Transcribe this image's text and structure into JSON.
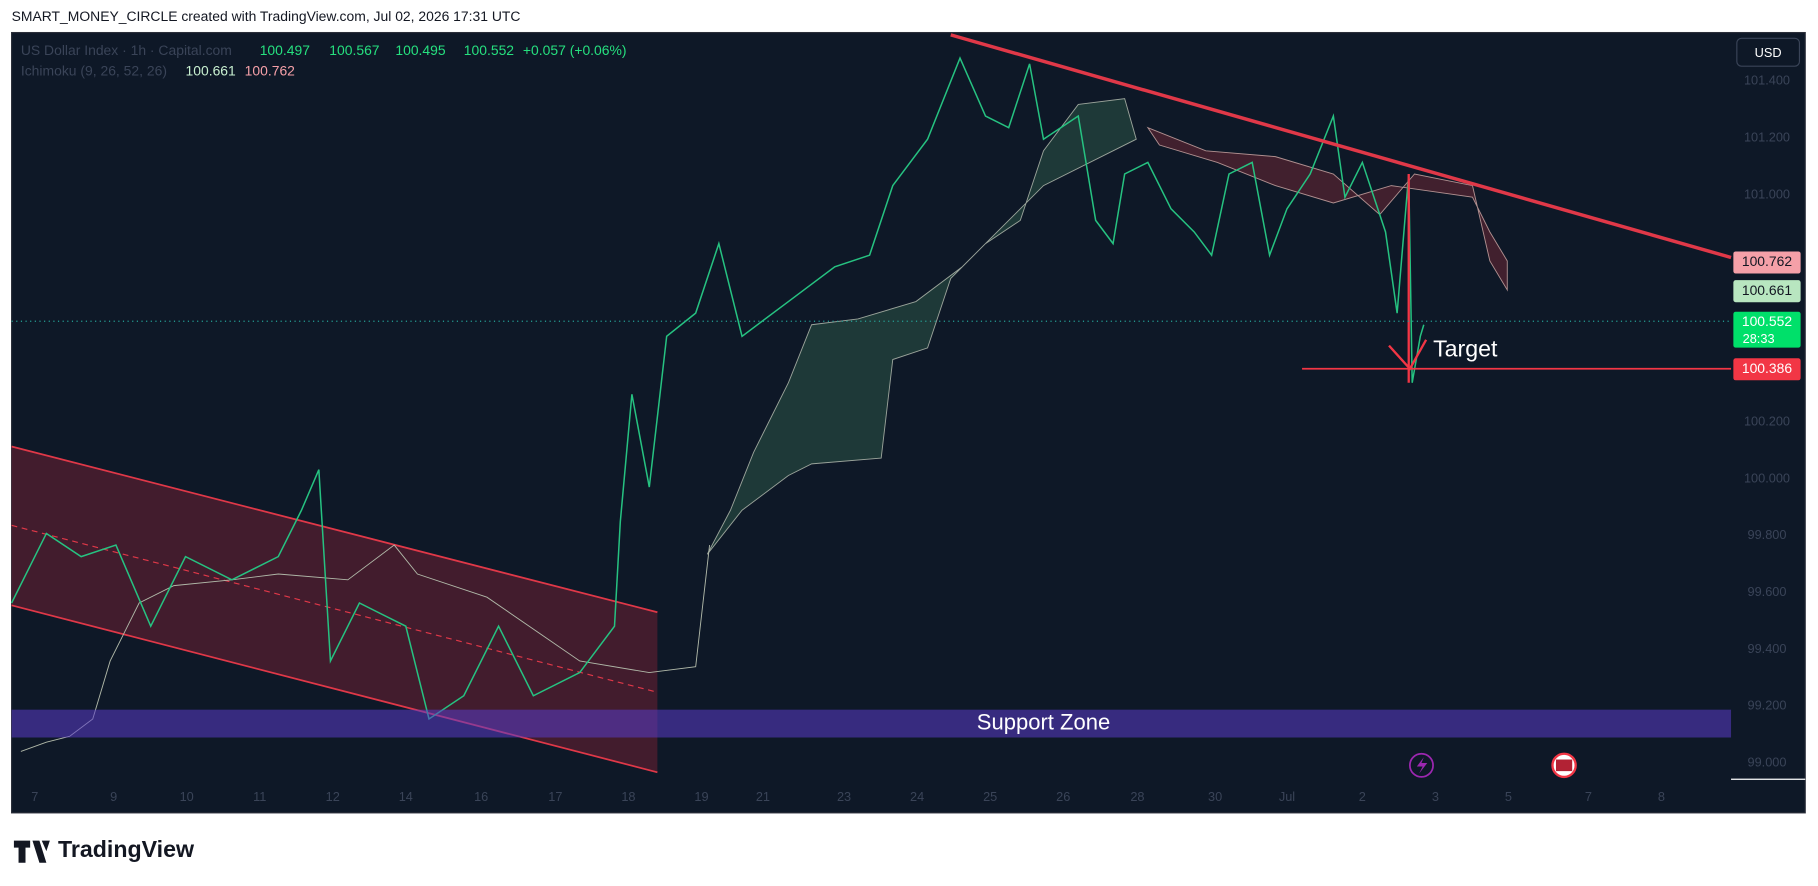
{
  "header": {
    "text": "SMART_MONEY_CIRCLE created with TradingView.com, Jul 02, 2026 17:31 UTC"
  },
  "legend": {
    "symbol": "US Dollar Index · 1h · Capital.com",
    "open": "100.497",
    "high": "100.567",
    "low": "100.495",
    "close": "100.552",
    "change": "+0.057 (+0.06%)",
    "indicator": "Ichimoku (9, 26, 52, 26)",
    "indicator_values": [
      "100.661",
      "100.762"
    ]
  },
  "currency": "USD",
  "price_axis": {
    "labels": [
      "101.400",
      "101.200",
      "101.000",
      "100.200",
      "100.000",
      "99.800",
      "99.600",
      "99.400",
      "99.200",
      "99.000"
    ]
  },
  "price_tags": [
    {
      "label": "100.762"
    },
    {
      "label": "100.661"
    },
    {
      "label": "100.552",
      "countdown": "28:33"
    },
    {
      "label": "100.386"
    }
  ],
  "time_axis": {
    "labels": [
      "7",
      "9",
      "10",
      "11",
      "12",
      "14",
      "16",
      "17",
      "18",
      "19",
      "21",
      "23",
      "24",
      "25",
      "26",
      "28",
      "30",
      "Jul",
      "2",
      "3",
      "5",
      "7",
      "8"
    ]
  },
  "annotations": {
    "target": "Target",
    "support_zone": "Support Zone"
  },
  "footer": {
    "brand": "TradingView"
  }
}
